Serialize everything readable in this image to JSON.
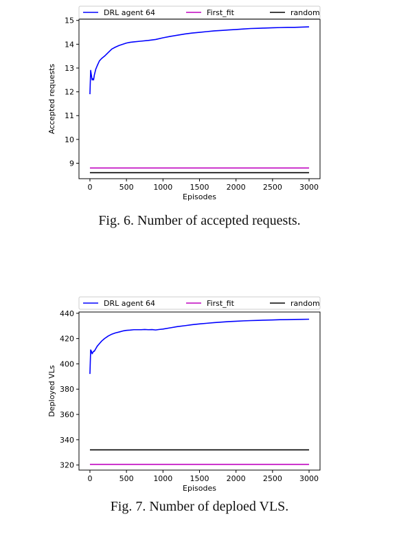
{
  "figures": [
    {
      "caption": "Fig. 6.  Number of accepted requests.",
      "chart_data": {
        "type": "line",
        "title": "",
        "xlabel": "Episodes",
        "ylabel": "Accepted requests",
        "xlim": [
          -150,
          3150
        ],
        "ylim": [
          8.35,
          15.05
        ],
        "xticks": [
          0,
          500,
          1000,
          1500,
          2000,
          2500,
          3000
        ],
        "yticks": [
          9,
          10,
          11,
          12,
          13,
          14,
          15
        ],
        "grid": false,
        "legend": "top",
        "series": [
          {
            "name": "DRL agent 64",
            "color": "#0000ff",
            "x": [
              0,
              10,
              20,
              30,
              40,
              50,
              60,
              80,
              100,
              130,
              160,
              200,
              250,
              300,
              350,
              400,
              450,
              500,
              550,
              600,
              700,
              800,
              900,
              1000,
              1100,
              1200,
              1300,
              1400,
              1500,
              1600,
              1700,
              1800,
              1900,
              2000,
              2100,
              2200,
              2300,
              2400,
              2500,
              2600,
              2700,
              2800,
              2900,
              3000
            ],
            "y": [
              11.9,
              12.9,
              12.7,
              12.5,
              12.55,
              12.5,
              12.7,
              12.95,
              13.1,
              13.3,
              13.4,
              13.5,
              13.65,
              13.8,
              13.88,
              13.95,
              14.0,
              14.05,
              14.08,
              14.1,
              14.13,
              14.16,
              14.2,
              14.27,
              14.33,
              14.38,
              14.43,
              14.47,
              14.5,
              14.53,
              14.56,
              14.58,
              14.6,
              14.62,
              14.64,
              14.66,
              14.67,
              14.68,
              14.69,
              14.7,
              14.71,
              14.71,
              14.72,
              14.73
            ]
          },
          {
            "name": "First_fit",
            "color": "#bf00bf",
            "x": [
              0,
              3000
            ],
            "y": [
              8.8,
              8.8
            ]
          },
          {
            "name": "random",
            "color": "#000000",
            "x": [
              0,
              3000
            ],
            "y": [
              8.6,
              8.6
            ]
          }
        ]
      }
    },
    {
      "caption": "Fig. 7.  Number of deploed VLS.",
      "chart_data": {
        "type": "line",
        "title": "",
        "xlabel": "Episodes",
        "ylabel": "Deployed VLs",
        "xlim": [
          -150,
          3150
        ],
        "ylim": [
          316,
          441
        ],
        "xticks": [
          0,
          500,
          1000,
          1500,
          2000,
          2500,
          3000
        ],
        "yticks": [
          320,
          340,
          360,
          380,
          400,
          420,
          440
        ],
        "grid": false,
        "legend": "top",
        "series": [
          {
            "name": "DRL agent 64",
            "color": "#0000ff",
            "x": [
              0,
              10,
              20,
              30,
              40,
              50,
              60,
              80,
              100,
              130,
              160,
              200,
              250,
              300,
              350,
              400,
              450,
              500,
              550,
              600,
              650,
              700,
              750,
              800,
              850,
              900,
              950,
              1000,
              1100,
              1200,
              1300,
              1400,
              1500,
              1600,
              1700,
              1800,
              1900,
              2000,
              2100,
              2200,
              2300,
              2400,
              2500,
              2600,
              2700,
              2800,
              2900,
              3000
            ],
            "y": [
              392,
              411,
              410,
              408,
              409,
              410,
              410,
              412,
              414,
              416,
              418,
              420,
              422,
              423.5,
              424.5,
              425.2,
              426,
              426.5,
              426.7,
              427,
              427,
              427,
              427.2,
              427,
              427.1,
              426.8,
              427.2,
              427.5,
              428.5,
              429.5,
              430.2,
              431,
              431.6,
              432.1,
              432.6,
              433,
              433.4,
              433.7,
              434,
              434.2,
              434.4,
              434.6,
              434.7,
              434.9,
              435,
              435.1,
              435.2,
              435.3
            ]
          },
          {
            "name": "First_fit",
            "color": "#bf00bf",
            "x": [
              0,
              3000
            ],
            "y": [
              320.5,
              320.5
            ]
          },
          {
            "name": "random",
            "color": "#000000",
            "x": [
              0,
              3000
            ],
            "y": [
              332,
              332
            ]
          }
        ]
      }
    }
  ]
}
